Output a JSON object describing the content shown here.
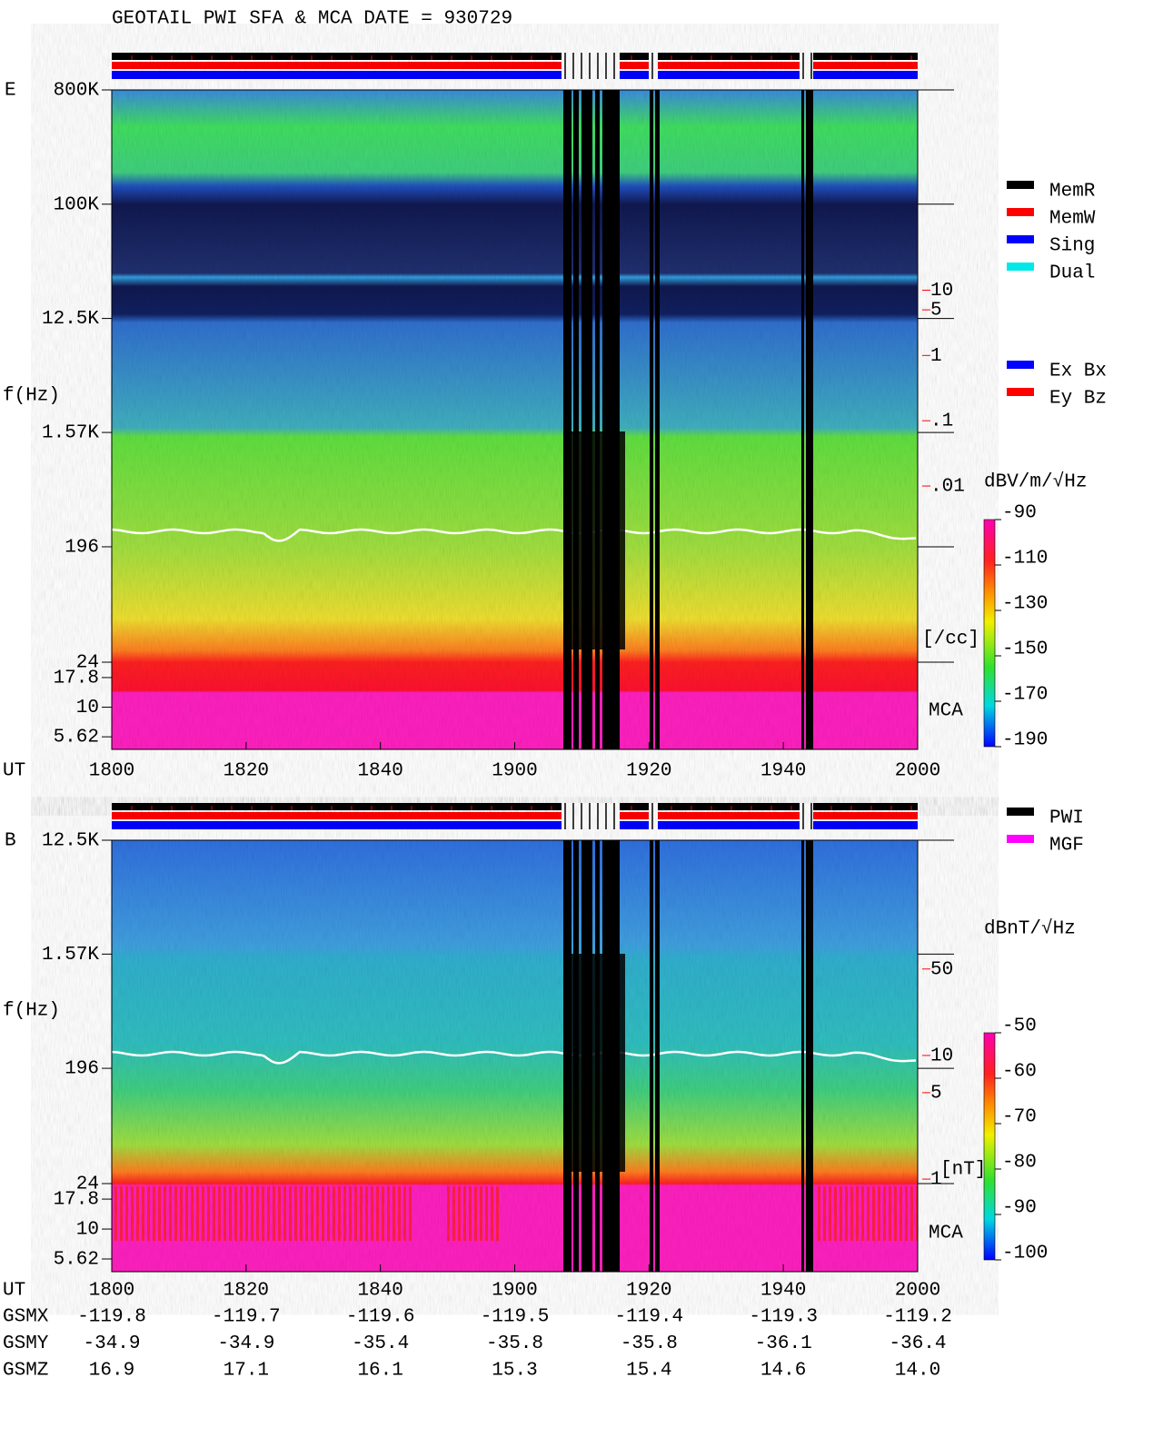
{
  "title": "GEOTAIL  PWI SFA & MCA   DATE = 930729",
  "chart_data": [
    {
      "type": "spectrogram",
      "panel_label": "E",
      "y_label": "f(Hz)",
      "x_label": "UT",
      "log_y": true,
      "xlim": [
        1080,
        1200
      ],
      "xticks": [
        {
          "value": 1080,
          "label": "1800"
        },
        {
          "value": 1100,
          "label": "1820"
        },
        {
          "value": 1120,
          "label": "1840"
        },
        {
          "value": 1140,
          "label": "1900"
        },
        {
          "value": 1160,
          "label": "1920"
        },
        {
          "value": 1180,
          "label": "1940"
        },
        {
          "value": 1200,
          "label": "2000"
        }
      ],
      "ylim": [
        24,
        800000
      ],
      "mca_ylim": [
        4.4,
        24
      ],
      "yticks": [
        {
          "value": 800000,
          "label": "800K"
        },
        {
          "value": 100000,
          "label": "100K"
        },
        {
          "value": 12500,
          "label": "12.5K"
        },
        {
          "value": 1570,
          "label": "1.57K"
        },
        196,
        24,
        17.8,
        10,
        5.62
      ],
      "mca_label": "MCA",
      "y2lim": [
        2e-05,
        11700
      ],
      "y2ticks": [
        10,
        5,
        1,
        {
          "value": 0.1,
          "label": ".1"
        },
        {
          "value": 0.01,
          "label": ".01"
        }
      ],
      "y2_label": "[/cc]",
      "y2_color": "#ff0000",
      "legend": [
        {
          "name": "MemR",
          "color": "#000000"
        },
        {
          "name": "MemW",
          "color": "#ff0000"
        },
        {
          "name": "Sing",
          "color": "#0000ff"
        },
        {
          "name": "Dual",
          "color": "#00e8e8"
        }
      ],
      "legend2": [
        {
          "name": "Ex Bx",
          "color": "#0000ff"
        },
        {
          "name": "Ey Bz",
          "color": "#ff0000"
        }
      ],
      "colorbar": {
        "label": "dBV/m/√Hz",
        "lim": [
          -190,
          -90
        ],
        "ticks": [
          -90,
          -110,
          -130,
          -150,
          -170,
          -190
        ]
      }
    },
    {
      "type": "spectrogram",
      "panel_label": "B",
      "y_label": "f(Hz)",
      "x_label": "UT",
      "log_y": true,
      "xlim": [
        1080,
        1200
      ],
      "xticks": [
        {
          "value": 1080,
          "label": "1800"
        },
        {
          "value": 1100,
          "label": "1820"
        },
        {
          "value": 1120,
          "label": "1840"
        },
        {
          "value": 1140,
          "label": "1900"
        },
        {
          "value": 1160,
          "label": "1920"
        },
        {
          "value": 1180,
          "label": "1940"
        },
        {
          "value": 1200,
          "label": "2000"
        }
      ],
      "ylim": [
        24,
        12500
      ],
      "mca_ylim": [
        4.4,
        24
      ],
      "yticks": [
        {
          "value": 12500,
          "label": "12.5K"
        },
        {
          "value": 1570,
          "label": "1.57K"
        },
        196,
        24,
        17.8,
        10,
        5.62
      ],
      "mca_label": "MCA",
      "y2lim": [
        0.92,
        550
      ],
      "y2ticks": [
        50,
        10,
        5,
        1
      ],
      "y2_label": "[nT]",
      "y2_color": "#ff0000",
      "legend": [
        {
          "name": "PWI",
          "color": "#000000"
        },
        {
          "name": "MGF",
          "color": "#ff00ff"
        }
      ],
      "colorbar": {
        "label": "dBnT/√Hz",
        "lim": [
          -100,
          -50
        ],
        "ticks": [
          -50,
          -60,
          -70,
          -80,
          -90,
          -100
        ]
      }
    }
  ],
  "orbit": {
    "rows": [
      {
        "label": "GSMX",
        "values": [
          "-119.8",
          "-119.7",
          "-119.6",
          "-119.5",
          "-119.4",
          "-119.3",
          "-119.2"
        ]
      },
      {
        "label": "GSMY",
        "values": [
          "-34.9",
          "-34.9",
          "-35.4",
          "-35.8",
          "-35.8",
          "-36.1",
          "-36.4"
        ]
      },
      {
        "label": "GSMZ",
        "values": [
          "16.9",
          "17.1",
          "16.1",
          "15.3",
          "15.4",
          "14.6",
          "14.0"
        ]
      }
    ]
  }
}
